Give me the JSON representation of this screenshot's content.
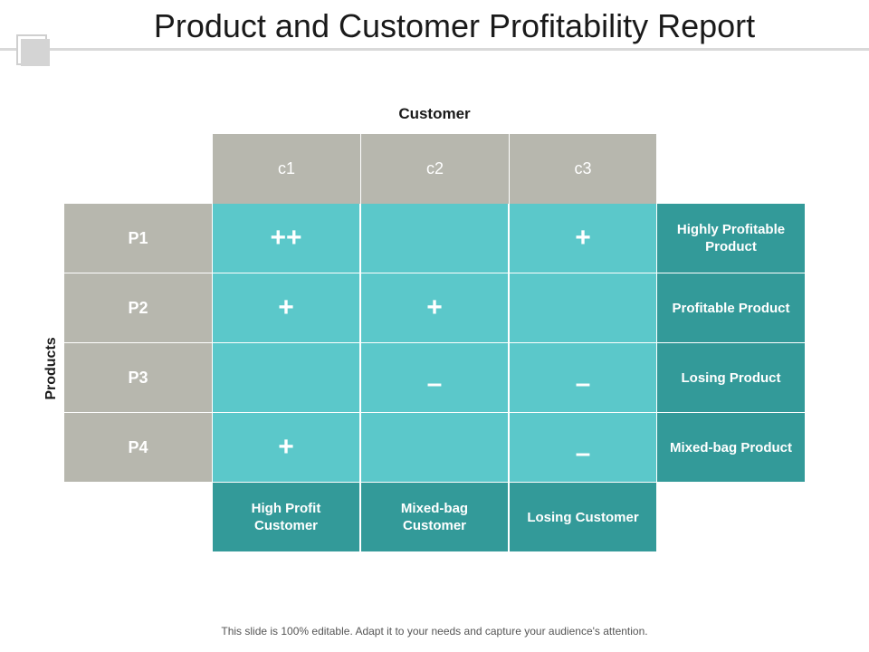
{
  "title": "Product and Customer Profitability Report",
  "axis": {
    "customer": "Customer",
    "products": "Products"
  },
  "columns": [
    "c1",
    "c2",
    "c3"
  ],
  "rows": [
    "P1",
    "P2",
    "P3",
    "P4"
  ],
  "cells": [
    [
      "++",
      "",
      "+"
    ],
    [
      "+",
      "+",
      ""
    ],
    [
      "",
      "–",
      "–"
    ],
    [
      "+",
      "",
      "–"
    ]
  ],
  "row_labels": [
    "Highly Profitable Product",
    "Profitable Product",
    "Losing Product",
    "Mixed-bag Product"
  ],
  "column_labels": [
    "High Profit Customer",
    "Mixed-bag Customer",
    "Losing Customer"
  ],
  "footer": "This slide is 100% editable. Adapt it to your needs and capture your audience's attention.",
  "colors": {
    "header_gray": "#b7b7ae",
    "grid_teal": "#5bc8ca",
    "label_teal": "#339a99"
  }
}
